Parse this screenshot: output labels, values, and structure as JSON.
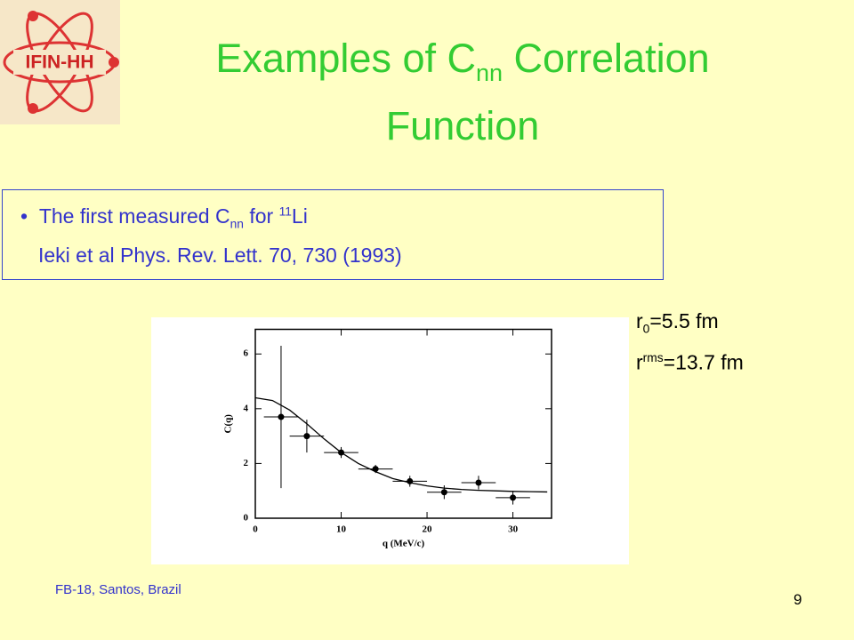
{
  "logo": {
    "text": "IFIN-HH"
  },
  "title": {
    "line1": [
      "Examples of C",
      "nn",
      " Correlation"
    ],
    "line2": "Function"
  },
  "box": {
    "bullet": [
      "The first measured C",
      "nn",
      " for ",
      "11",
      "Li"
    ],
    "reference": "Ieki et al Phys. Rev. Lett. 70, 730 (1993)"
  },
  "annotations": [
    [
      "r",
      "0",
      "=5.5 fm"
    ],
    [
      "r",
      "rms",
      "=13.7 fm"
    ]
  ],
  "footer": {
    "left": "FB-18, Santos, Brazil",
    "page": "9"
  },
  "chart_data": {
    "type": "scatter",
    "x_label": "q (MeV/c)",
    "y_label": "C(q)",
    "x": [
      3,
      6,
      10,
      14,
      18,
      22,
      26,
      30
    ],
    "values": [
      3.7,
      3.0,
      2.4,
      1.8,
      1.35,
      0.95,
      1.3,
      0.75
    ],
    "yerr": [
      2.6,
      0.6,
      0.2,
      0.15,
      0.2,
      0.25,
      0.25,
      0.25
    ],
    "xerr": [
      2,
      2,
      2,
      2,
      2,
      2,
      2,
      2
    ],
    "color": "#000000",
    "curve": {
      "x": [
        0,
        2,
        4,
        6,
        8,
        10,
        12,
        14,
        16,
        18,
        20,
        22,
        24,
        26,
        28,
        30,
        32,
        34
      ],
      "values": [
        4.4,
        4.3,
        3.95,
        3.45,
        2.9,
        2.4,
        2.0,
        1.7,
        1.45,
        1.3,
        1.18,
        1.1,
        1.05,
        1.02,
        1.0,
        0.98,
        0.97,
        0.96
      ]
    },
    "xlim": [
      0,
      34.5
    ],
    "ylim": [
      0,
      6.9
    ],
    "xticks": [
      0,
      10,
      20,
      30
    ],
    "yticks": [
      0,
      2,
      4,
      6
    ]
  }
}
